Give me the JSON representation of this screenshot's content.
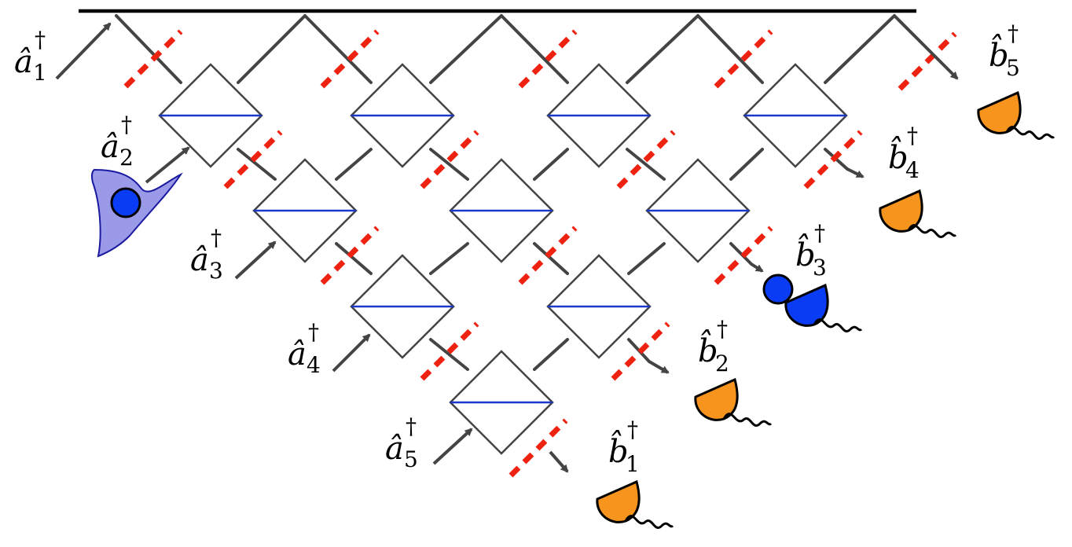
{
  "diagram": {
    "mode_count": 5,
    "inputs": [
      {
        "symbol": "â",
        "sub": "1",
        "sup": "†"
      },
      {
        "symbol": "â",
        "sub": "2",
        "sup": "†"
      },
      {
        "symbol": "â",
        "sub": "3",
        "sup": "†"
      },
      {
        "symbol": "â",
        "sub": "4",
        "sup": "†"
      },
      {
        "symbol": "â",
        "sub": "5",
        "sup": "†"
      }
    ],
    "outputs": [
      {
        "symbol": "b̂",
        "sub": "1",
        "sup": "†",
        "detector_color": "#f7941d",
        "detected_photon": false
      },
      {
        "symbol": "b̂",
        "sub": "2",
        "sup": "†",
        "detector_color": "#f7941d",
        "detected_photon": false
      },
      {
        "symbol": "b̂",
        "sub": "3",
        "sup": "†",
        "detector_color": "#0b3cf5",
        "detected_photon": true
      },
      {
        "symbol": "b̂",
        "sub": "4",
        "sup": "†",
        "detector_color": "#f7941d",
        "detected_photon": false
      },
      {
        "symbol": "b̂",
        "sub": "5",
        "sup": "†",
        "detector_color": "#f7941d",
        "detected_photon": false
      }
    ],
    "input_photon_mode": 2,
    "colors": {
      "waveguide": "#444444",
      "splitter_line": "#1b39c9",
      "phase_shifter": "#ee2211",
      "photon": "#0b3cf5",
      "wavepacket_fill": "#9a9ae8",
      "wavepacket_stroke": "#1a1aa0",
      "mirror": "#000000"
    }
  }
}
